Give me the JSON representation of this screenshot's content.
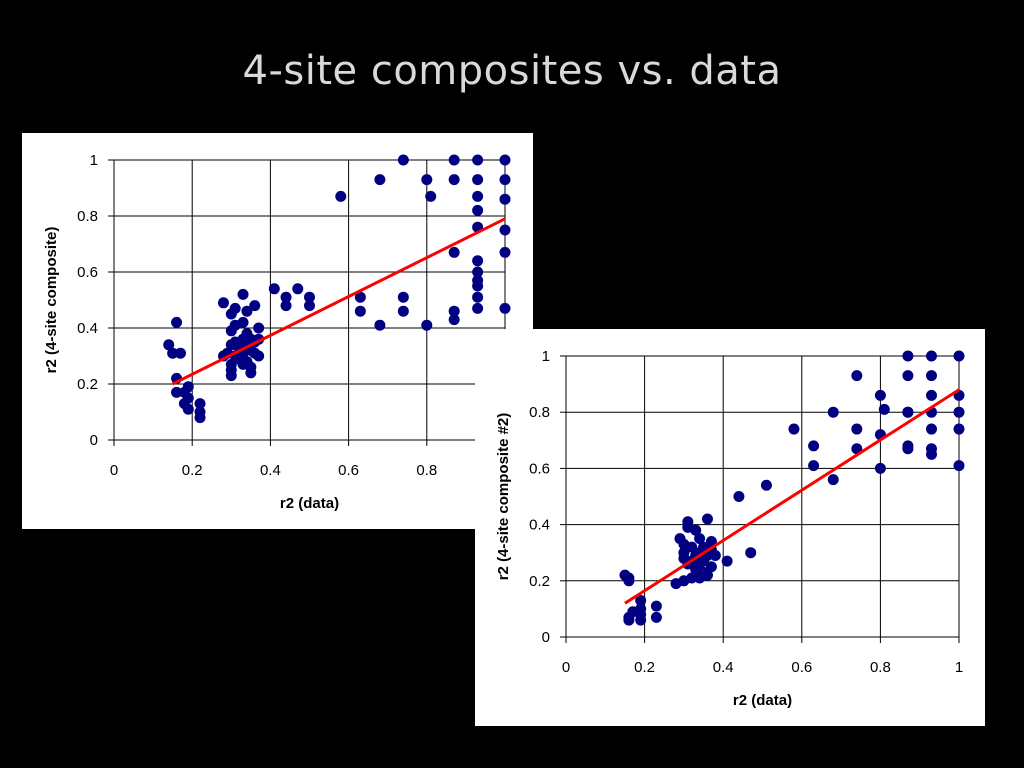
{
  "slide": {
    "title": "4-site composites vs. data"
  },
  "chart_data": [
    {
      "type": "scatter",
      "title": "",
      "xlabel": "r2 (data)",
      "ylabel": "r2 (4-site composite)",
      "xlim": [
        0,
        1
      ],
      "ylim": [
        0,
        1
      ],
      "xticks": [
        "0",
        "0.2",
        "0.4",
        "0.6",
        "0.8"
      ],
      "yticks": [
        "0",
        "0.2",
        "0.4",
        "0.6",
        "0.8",
        "1"
      ],
      "grid": true,
      "legend": "none",
      "marker_color": "#000080",
      "trendline_color": "#ff0000",
      "trendline": {
        "x": [
          0.15,
          1.0
        ],
        "y": [
          0.2,
          0.79
        ]
      },
      "points": [
        [
          0.74,
          1.0
        ],
        [
          0.87,
          1.0
        ],
        [
          0.93,
          1.0
        ],
        [
          1.0,
          1.0
        ],
        [
          0.68,
          0.93
        ],
        [
          0.8,
          0.93
        ],
        [
          0.87,
          0.93
        ],
        [
          0.93,
          0.93
        ],
        [
          1.0,
          0.93
        ],
        [
          0.58,
          0.87
        ],
        [
          0.81,
          0.87
        ],
        [
          0.93,
          0.87
        ],
        [
          1.0,
          0.86
        ],
        [
          0.93,
          0.82
        ],
        [
          0.93,
          0.76
        ],
        [
          1.0,
          0.75
        ],
        [
          0.87,
          0.67
        ],
        [
          1.0,
          0.67
        ],
        [
          0.93,
          0.64
        ],
        [
          0.93,
          0.6
        ],
        [
          0.93,
          0.57
        ],
        [
          0.93,
          0.55
        ],
        [
          0.41,
          0.54
        ],
        [
          0.47,
          0.54
        ],
        [
          0.44,
          0.51
        ],
        [
          0.5,
          0.51
        ],
        [
          0.63,
          0.51
        ],
        [
          0.74,
          0.51
        ],
        [
          0.93,
          0.51
        ],
        [
          0.44,
          0.48
        ],
        [
          0.5,
          0.48
        ],
        [
          0.93,
          0.47
        ],
        [
          1.0,
          0.47
        ],
        [
          0.63,
          0.46
        ],
        [
          0.74,
          0.46
        ],
        [
          0.87,
          0.46
        ],
        [
          0.87,
          0.43
        ],
        [
          0.68,
          0.41
        ],
        [
          0.8,
          0.41
        ],
        [
          0.33,
          0.52
        ],
        [
          0.28,
          0.49
        ],
        [
          0.31,
          0.47
        ],
        [
          0.36,
          0.48
        ],
        [
          0.34,
          0.46
        ],
        [
          0.3,
          0.45
        ],
        [
          0.33,
          0.42
        ],
        [
          0.31,
          0.41
        ],
        [
          0.37,
          0.4
        ],
        [
          0.16,
          0.42
        ],
        [
          0.3,
          0.39
        ],
        [
          0.34,
          0.38
        ],
        [
          0.33,
          0.36
        ],
        [
          0.35,
          0.36
        ],
        [
          0.31,
          0.35
        ],
        [
          0.36,
          0.35
        ],
        [
          0.37,
          0.36
        ],
        [
          0.14,
          0.34
        ],
        [
          0.3,
          0.34
        ],
        [
          0.32,
          0.33
        ],
        [
          0.34,
          0.33
        ],
        [
          0.35,
          0.32
        ],
        [
          0.29,
          0.31
        ],
        [
          0.33,
          0.31
        ],
        [
          0.36,
          0.31
        ],
        [
          0.15,
          0.31
        ],
        [
          0.17,
          0.31
        ],
        [
          0.28,
          0.3
        ],
        [
          0.31,
          0.3
        ],
        [
          0.37,
          0.3
        ],
        [
          0.32,
          0.29
        ],
        [
          0.34,
          0.28
        ],
        [
          0.3,
          0.27
        ],
        [
          0.33,
          0.27
        ],
        [
          0.35,
          0.26
        ],
        [
          0.3,
          0.25
        ],
        [
          0.35,
          0.24
        ],
        [
          0.3,
          0.23
        ],
        [
          0.16,
          0.22
        ],
        [
          0.19,
          0.19
        ],
        [
          0.16,
          0.17
        ],
        [
          0.18,
          0.17
        ],
        [
          0.19,
          0.15
        ],
        [
          0.18,
          0.13
        ],
        [
          0.22,
          0.13
        ],
        [
          0.19,
          0.11
        ],
        [
          0.22,
          0.1
        ],
        [
          0.22,
          0.08
        ]
      ]
    },
    {
      "type": "scatter",
      "title": "",
      "xlabel": "r2 (data)",
      "ylabel": "r2 (4-site composite #2)",
      "xlim": [
        0,
        1
      ],
      "ylim": [
        0,
        1
      ],
      "xticks": [
        "0",
        "0.2",
        "0.4",
        "0.6",
        "0.8",
        "1"
      ],
      "yticks": [
        "0",
        "0.2",
        "0.4",
        "0.6",
        "0.8",
        "1"
      ],
      "grid": true,
      "legend": "none",
      "marker_color": "#000080",
      "trendline_color": "#ff0000",
      "trendline": {
        "x": [
          0.15,
          1.0
        ],
        "y": [
          0.12,
          0.88
        ]
      },
      "points": [
        [
          0.87,
          1.0
        ],
        [
          0.93,
          1.0
        ],
        [
          1.0,
          1.0
        ],
        [
          0.74,
          0.93
        ],
        [
          0.87,
          0.93
        ],
        [
          0.93,
          0.93
        ],
        [
          0.8,
          0.86
        ],
        [
          0.93,
          0.86
        ],
        [
          1.0,
          0.86
        ],
        [
          0.81,
          0.81
        ],
        [
          0.68,
          0.8
        ],
        [
          0.87,
          0.8
        ],
        [
          0.93,
          0.8
        ],
        [
          1.0,
          0.8
        ],
        [
          0.87,
          0.8
        ],
        [
          0.58,
          0.74
        ],
        [
          0.74,
          0.74
        ],
        [
          0.93,
          0.74
        ],
        [
          1.0,
          0.74
        ],
        [
          0.8,
          0.72
        ],
        [
          0.63,
          0.68
        ],
        [
          0.74,
          0.67
        ],
        [
          0.87,
          0.67
        ],
        [
          0.93,
          0.67
        ],
        [
          0.87,
          0.68
        ],
        [
          0.93,
          0.65
        ],
        [
          0.63,
          0.61
        ],
        [
          0.8,
          0.6
        ],
        [
          1.0,
          0.61
        ],
        [
          0.68,
          0.56
        ],
        [
          0.51,
          0.54
        ],
        [
          0.44,
          0.5
        ],
        [
          0.47,
          0.3
        ],
        [
          0.36,
          0.42
        ],
        [
          0.31,
          0.41
        ],
        [
          0.31,
          0.39
        ],
        [
          0.33,
          0.38
        ],
        [
          0.29,
          0.35
        ],
        [
          0.34,
          0.35
        ],
        [
          0.37,
          0.34
        ],
        [
          0.3,
          0.33
        ],
        [
          0.32,
          0.32
        ],
        [
          0.35,
          0.32
        ],
        [
          0.37,
          0.31
        ],
        [
          0.3,
          0.3
        ],
        [
          0.34,
          0.3
        ],
        [
          0.33,
          0.29
        ],
        [
          0.36,
          0.29
        ],
        [
          0.38,
          0.29
        ],
        [
          0.3,
          0.28
        ],
        [
          0.32,
          0.27
        ],
        [
          0.35,
          0.27
        ],
        [
          0.41,
          0.27
        ],
        [
          0.31,
          0.26
        ],
        [
          0.34,
          0.26
        ],
        [
          0.37,
          0.25
        ],
        [
          0.33,
          0.24
        ],
        [
          0.35,
          0.23
        ],
        [
          0.36,
          0.22
        ],
        [
          0.32,
          0.21
        ],
        [
          0.34,
          0.21
        ],
        [
          0.3,
          0.2
        ],
        [
          0.28,
          0.19
        ],
        [
          0.15,
          0.22
        ],
        [
          0.16,
          0.21
        ],
        [
          0.16,
          0.2
        ],
        [
          0.19,
          0.13
        ],
        [
          0.23,
          0.11
        ],
        [
          0.19,
          0.1
        ],
        [
          0.17,
          0.09
        ],
        [
          0.19,
          0.08
        ],
        [
          0.16,
          0.07
        ],
        [
          0.23,
          0.07
        ],
        [
          0.16,
          0.06
        ],
        [
          0.19,
          0.06
        ]
      ]
    }
  ]
}
